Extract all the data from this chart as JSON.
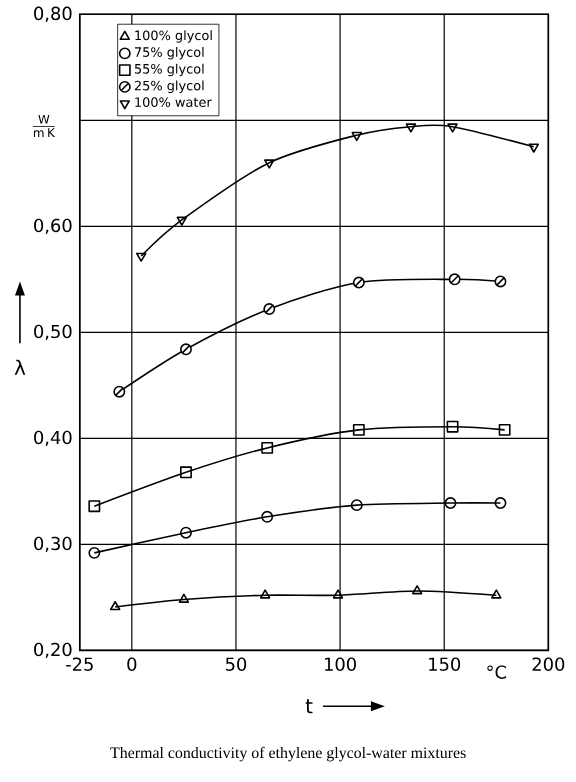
{
  "chart_data": {
    "type": "line",
    "title": "Thermal conductivity of ethylene glycol-water mixtures",
    "xlabel": "t",
    "ylabel": "λ",
    "annotations": [
      "°C",
      "\\frac{\\mathrm{W}}{\\mathrm{m\\,K}}"
    ],
    "xlim": [
      -25,
      200
    ],
    "ylim": [
      0.2,
      0.8
    ],
    "xticks": [
      {
        "value": -25,
        "label": "-25"
      },
      0,
      50,
      100,
      150,
      200
    ],
    "yticks": [
      {
        "value": 0.2,
        "label": "0,20"
      },
      {
        "value": 0.3,
        "label": "0,30"
      },
      {
        "value": 0.4,
        "label": "0,40"
      },
      {
        "value": 0.5,
        "label": "0,50"
      },
      {
        "value": 0.6,
        "label": "0,60"
      },
      {
        "value": 0.7,
        "label": null
      },
      {
        "value": 0.8,
        "label": "0,80"
      }
    ],
    "grid": true,
    "legend": "top left",
    "line_style": "solid",
    "series": [
      {
        "name": "100% glycol",
        "color": "#000000",
        "marker": "triangle",
        "x": [
          -8,
          25,
          64,
          99,
          137,
          175
        ],
        "values": [
          0.241,
          0.248,
          0.252,
          0.252,
          0.256,
          0.252
        ]
      },
      {
        "name": "75% glycol",
        "color": "#000000",
        "marker": "circle",
        "x": [
          -18,
          26,
          65,
          108,
          153,
          177
        ],
        "values": [
          0.292,
          0.311,
          0.326,
          0.337,
          0.339,
          0.339
        ]
      },
      {
        "name": "55% glycol",
        "color": "#000000",
        "marker": "square",
        "x": [
          -18,
          26,
          65,
          109,
          154,
          179
        ],
        "values": [
          0.336,
          0.368,
          0.391,
          0.408,
          0.411,
          0.408
        ]
      },
      {
        "name": "25% glycol",
        "color": "#000000",
        "marker": "circle slashed",
        "x": [
          -6,
          26,
          66,
          109,
          155,
          177
        ],
        "values": [
          0.444,
          0.484,
          0.522,
          0.547,
          0.55,
          0.548
        ]
      },
      {
        "name": "100% water",
        "color": "#000000",
        "marker": "triangle down",
        "x": [
          4.5,
          24,
          66,
          108,
          134,
          154,
          193
        ],
        "values": [
          0.572,
          0.606,
          0.66,
          0.686,
          0.694,
          0.694,
          0.675
        ]
      }
    ]
  }
}
